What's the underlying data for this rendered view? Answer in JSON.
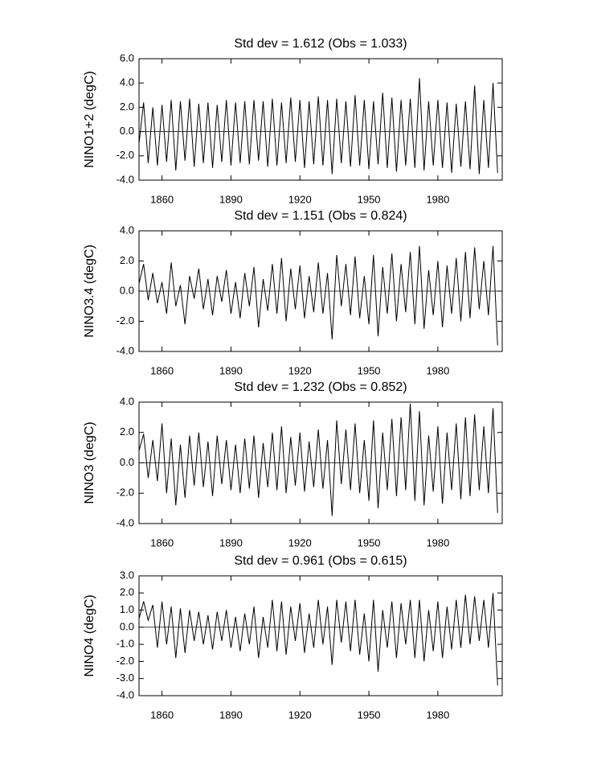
{
  "chart_data": [
    {
      "type": "line",
      "title": "Std dev = 1.612 (Obs = 1.033)",
      "y_label": "NINO1+2 (degC)",
      "color": "#000000",
      "hline": 0,
      "x": [
        1850,
        1852,
        1854,
        1856,
        1858,
        1860,
        1862,
        1864,
        1866,
        1868,
        1870,
        1872,
        1874,
        1876,
        1878,
        1880,
        1882,
        1884,
        1886,
        1888,
        1890,
        1892,
        1894,
        1896,
        1898,
        1900,
        1902,
        1904,
        1906,
        1908,
        1910,
        1912,
        1914,
        1916,
        1918,
        1920,
        1922,
        1924,
        1926,
        1928,
        1930,
        1932,
        1934,
        1936,
        1938,
        1940,
        1942,
        1944,
        1946,
        1948,
        1950,
        1952,
        1954,
        1956,
        1958,
        1960,
        1962,
        1964,
        1966,
        1968,
        1970,
        1972,
        1974,
        1976,
        1978,
        1980,
        1982,
        1984,
        1986,
        1988,
        1990,
        1992,
        1994,
        1996,
        1998,
        2000,
        2002,
        2004,
        2006
      ],
      "values": [
        -1.0,
        2.4,
        -2.6,
        2.0,
        -2.8,
        2.2,
        -2.5,
        2.6,
        -3.2,
        2.5,
        -2.4,
        2.7,
        -2.9,
        2.3,
        -2.6,
        2.4,
        -3.0,
        2.2,
        -2.5,
        2.6,
        -2.8,
        2.4,
        -2.6,
        2.5,
        -2.7,
        2.6,
        -2.4,
        2.5,
        -2.9,
        2.7,
        -2.8,
        2.4,
        -2.6,
        2.8,
        -2.5,
        2.6,
        -3.0,
        2.5,
        -2.7,
        2.9,
        -2.8,
        2.6,
        -3.5,
        2.7,
        -2.6,
        2.5,
        -2.9,
        3.0,
        -2.8,
        2.6,
        -3.1,
        2.5,
        -2.7,
        3.2,
        -3.0,
        2.8,
        -3.3,
        2.6,
        -2.8,
        2.7,
        -3.0,
        4.4,
        -3.2,
        2.5,
        -2.8,
        2.6,
        -3.0,
        2.4,
        -3.4,
        2.3,
        -2.9,
        2.5,
        -3.1,
        3.8,
        -3.5,
        2.6,
        -3.0,
        4.0,
        -3.4
      ],
      "xlim": [
        1850,
        2008
      ],
      "ylim": [
        -4,
        6
      ],
      "xticks": [
        1860,
        1890,
        1920,
        1950,
        1980
      ],
      "yticks": [
        {
          "value": -4,
          "label": "-4.0"
        },
        {
          "value": -2,
          "label": "-2.0"
        },
        {
          "value": 0,
          "label": "0.0"
        },
        {
          "value": 2,
          "label": "2.0"
        },
        {
          "value": 4,
          "label": "4.0"
        },
        {
          "value": 6,
          "label": "6.0"
        }
      ]
    },
    {
      "type": "line",
      "title": "Std dev = 1.151 (Obs = 0.824)",
      "y_label": "NINO3.4 (degC)",
      "color": "#000000",
      "hline": 0,
      "x": [
        1850,
        1852,
        1854,
        1856,
        1858,
        1860,
        1862,
        1864,
        1866,
        1868,
        1870,
        1872,
        1874,
        1876,
        1878,
        1880,
        1882,
        1884,
        1886,
        1888,
        1890,
        1892,
        1894,
        1896,
        1898,
        1900,
        1902,
        1904,
        1906,
        1908,
        1910,
        1912,
        1914,
        1916,
        1918,
        1920,
        1922,
        1924,
        1926,
        1928,
        1930,
        1932,
        1934,
        1936,
        1938,
        1940,
        1942,
        1944,
        1946,
        1948,
        1950,
        1952,
        1954,
        1956,
        1958,
        1960,
        1962,
        1964,
        1966,
        1968,
        1970,
        1972,
        1974,
        1976,
        1978,
        1980,
        1982,
        1984,
        1986,
        1988,
        1990,
        1992,
        1994,
        1996,
        1998,
        2000,
        2002,
        2004,
        2006
      ],
      "values": [
        0.5,
        1.8,
        -0.6,
        1.2,
        -0.8,
        0.6,
        -1.5,
        1.9,
        -1.0,
        0.4,
        -2.2,
        1.0,
        -0.5,
        1.5,
        -1.2,
        0.8,
        -1.6,
        1.0,
        -0.7,
        1.4,
        -1.5,
        0.6,
        -1.8,
        1.2,
        -1.0,
        1.6,
        -2.4,
        0.8,
        -1.3,
        1.8,
        -1.5,
        2.2,
        -2.0,
        1.5,
        -1.2,
        1.7,
        -1.8,
        1.0,
        -1.4,
        1.9,
        -1.5,
        1.2,
        -3.2,
        2.4,
        -1.0,
        1.8,
        -1.6,
        2.3,
        -1.8,
        1.0,
        -2.2,
        2.4,
        -3.0,
        1.6,
        -1.5,
        2.5,
        -2.0,
        1.8,
        -1.4,
        2.6,
        -2.2,
        3.0,
        -2.5,
        1.4,
        -1.6,
        2.0,
        -2.4,
        1.7,
        -1.5,
        2.2,
        -2.0,
        2.6,
        -1.8,
        2.9,
        -1.2,
        2.0,
        -1.6,
        3.0,
        -3.6
      ],
      "xlim": [
        1850,
        2008
      ],
      "ylim": [
        -4,
        4
      ],
      "xticks": [
        1860,
        1890,
        1920,
        1950,
        1980
      ],
      "yticks": [
        {
          "value": -4,
          "label": "-4.0"
        },
        {
          "value": -2,
          "label": "-2.0"
        },
        {
          "value": 0,
          "label": "0.0"
        },
        {
          "value": 2,
          "label": "2.0"
        },
        {
          "value": 4,
          "label": "4.0"
        }
      ]
    },
    {
      "type": "line",
      "title": "Std dev = 1.232 (Obs = 0.852)",
      "y_label": "NINO3 (degC)",
      "color": "#000000",
      "hline": 0,
      "x": [
        1850,
        1852,
        1854,
        1856,
        1858,
        1860,
        1862,
        1864,
        1866,
        1868,
        1870,
        1872,
        1874,
        1876,
        1878,
        1880,
        1882,
        1884,
        1886,
        1888,
        1890,
        1892,
        1894,
        1896,
        1898,
        1900,
        1902,
        1904,
        1906,
        1908,
        1910,
        1912,
        1914,
        1916,
        1918,
        1920,
        1922,
        1924,
        1926,
        1928,
        1930,
        1932,
        1934,
        1936,
        1938,
        1940,
        1942,
        1944,
        1946,
        1948,
        1950,
        1952,
        1954,
        1956,
        1958,
        1960,
        1962,
        1964,
        1966,
        1968,
        1970,
        1972,
        1974,
        1976,
        1978,
        1980,
        1982,
        1984,
        1986,
        1988,
        1990,
        1992,
        1994,
        1996,
        1998,
        2000,
        2002,
        2004,
        2006
      ],
      "values": [
        0.8,
        1.9,
        -1.0,
        1.5,
        -1.2,
        2.6,
        -2.0,
        1.6,
        -2.8,
        1.2,
        -2.3,
        1.8,
        -1.5,
        2.0,
        -1.6,
        1.4,
        -2.2,
        1.8,
        -1.4,
        1.5,
        -1.8,
        1.2,
        -2.0,
        1.6,
        -1.7,
        1.8,
        -2.3,
        1.3,
        -1.6,
        2.0,
        -1.8,
        2.4,
        -2.0,
        1.7,
        -1.5,
        2.0,
        -1.9,
        1.4,
        -1.6,
        2.2,
        -1.7,
        1.5,
        -3.5,
        2.8,
        -1.4,
        2.2,
        -1.8,
        2.6,
        -2.0,
        1.5,
        -2.5,
        2.8,
        -3.0,
        2.0,
        -1.8,
        2.9,
        -2.2,
        3.0,
        -1.8,
        3.9,
        -2.5,
        3.4,
        -2.8,
        1.8,
        -1.9,
        2.4,
        -2.7,
        2.0,
        -1.8,
        2.6,
        -2.4,
        3.0,
        -2.2,
        3.2,
        -1.8,
        2.4,
        -2.0,
        3.6,
        -3.3
      ],
      "xlim": [
        1850,
        2008
      ],
      "ylim": [
        -4,
        4
      ],
      "xticks": [
        1860,
        1890,
        1920,
        1950,
        1980
      ],
      "yticks": [
        {
          "value": -4,
          "label": "-4.0"
        },
        {
          "value": -2,
          "label": "-2.0"
        },
        {
          "value": 0,
          "label": "0.0"
        },
        {
          "value": 2,
          "label": "2.0"
        },
        {
          "value": 4,
          "label": "4.0"
        }
      ]
    },
    {
      "type": "line",
      "title": "Std dev = 0.961 (Obs = 0.615)",
      "y_label": "NINO4 (degC)",
      "color": "#000000",
      "hline": 0,
      "x": [
        1850,
        1852,
        1854,
        1856,
        1858,
        1860,
        1862,
        1864,
        1866,
        1868,
        1870,
        1872,
        1874,
        1876,
        1878,
        1880,
        1882,
        1884,
        1886,
        1888,
        1890,
        1892,
        1894,
        1896,
        1898,
        1900,
        1902,
        1904,
        1906,
        1908,
        1910,
        1912,
        1914,
        1916,
        1918,
        1920,
        1922,
        1924,
        1926,
        1928,
        1930,
        1932,
        1934,
        1936,
        1938,
        1940,
        1942,
        1944,
        1946,
        1948,
        1950,
        1952,
        1954,
        1956,
        1958,
        1960,
        1962,
        1964,
        1966,
        1968,
        1970,
        1972,
        1974,
        1976,
        1978,
        1980,
        1982,
        1984,
        1986,
        1988,
        1990,
        1992,
        1994,
        1996,
        1998,
        2000,
        2002,
        2004,
        2006
      ],
      "values": [
        0.5,
        1.5,
        0.4,
        1.3,
        -1.2,
        1.5,
        -1.0,
        1.2,
        -1.8,
        1.1,
        -1.5,
        1.0,
        -0.8,
        0.9,
        -1.0,
        0.7,
        -1.3,
        0.9,
        -0.8,
        1.0,
        -1.2,
        0.6,
        -1.4,
        0.8,
        -1.0,
        1.2,
        -1.8,
        0.6,
        -1.2,
        1.6,
        -1.4,
        1.5,
        -1.6,
        1.2,
        -0.8,
        1.4,
        -1.5,
        0.8,
        -1.2,
        1.6,
        -1.0,
        1.2,
        -2.2,
        1.6,
        -0.9,
        1.5,
        -1.4,
        1.6,
        -1.6,
        0.8,
        -2.0,
        1.6,
        -2.6,
        1.0,
        -1.2,
        1.5,
        -1.8,
        1.4,
        -1.0,
        1.6,
        -1.8,
        1.6,
        -2.0,
        1.0,
        -1.4,
        1.5,
        -1.8,
        1.2,
        -1.3,
        1.6,
        -1.2,
        1.9,
        -1.0,
        1.8,
        -0.8,
        1.6,
        -1.2,
        2.0,
        -3.4
      ],
      "xlim": [
        1850,
        2008
      ],
      "ylim": [
        -4,
        3
      ],
      "xticks": [
        1860,
        1890,
        1920,
        1950,
        1980
      ],
      "yticks": [
        {
          "value": -4,
          "label": "-4.0"
        },
        {
          "value": -3,
          "label": "-3.0"
        },
        {
          "value": -2,
          "label": "-2.0"
        },
        {
          "value": -1,
          "label": "-1.0"
        },
        {
          "value": 0,
          "label": "0.0"
        },
        {
          "value": 1,
          "label": "1.0"
        },
        {
          "value": 2,
          "label": "2.0"
        },
        {
          "value": 3,
          "label": "3.0"
        }
      ]
    }
  ]
}
